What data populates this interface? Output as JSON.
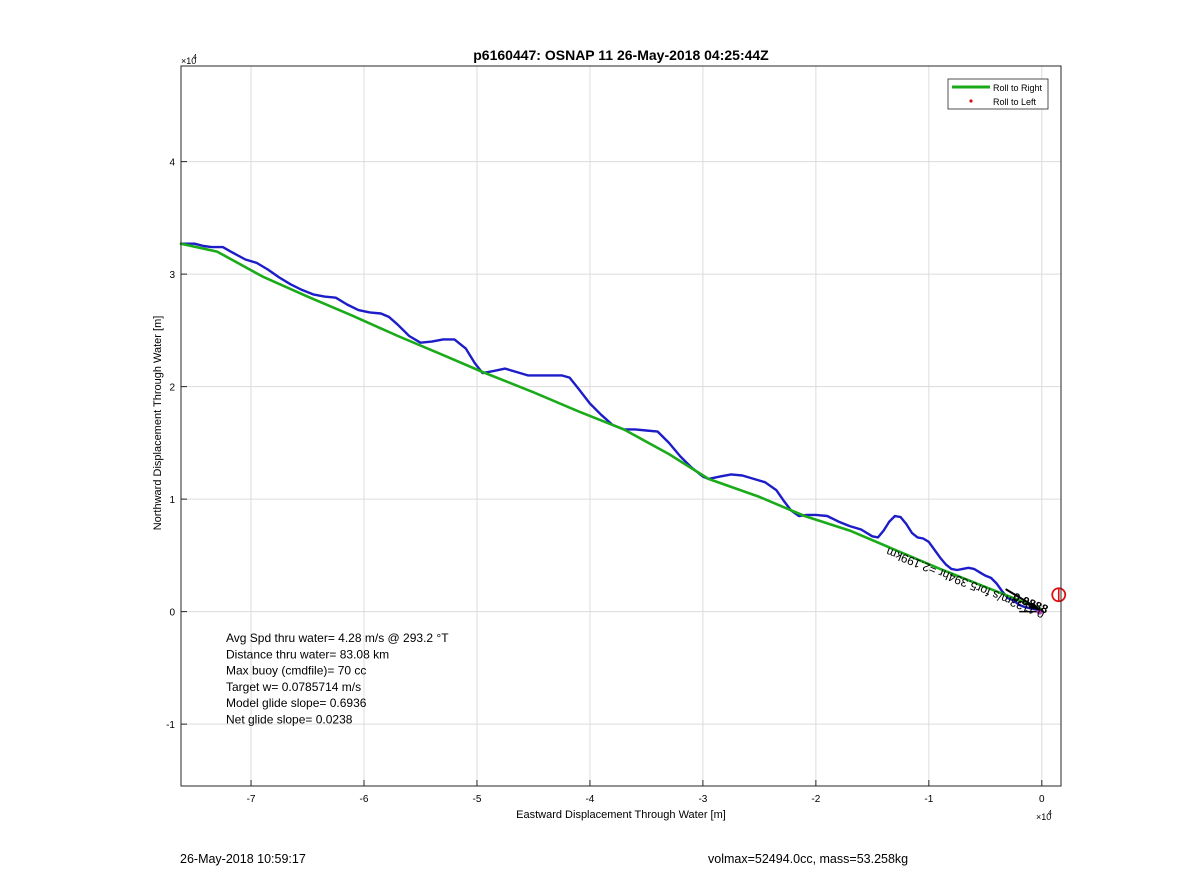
{
  "chart_data": {
    "type": "line",
    "title": "p6160447: OSNAP 11 26-May-2018 04:25:44Z",
    "xlabel": "Eastward Displacement Through Water [m]",
    "ylabel": "Northward Displacement Through Water [m]",
    "x_exponent_label": "×10",
    "x_exponent_power": "4",
    "y_exponent_label": "×10",
    "y_exponent_power": "4",
    "xlim": [
      -7.62,
      0.17
    ],
    "ylim": [
      -1.55,
      4.85
    ],
    "xticks": [
      -7,
      -6,
      -5,
      -4,
      -3,
      -2,
      -1,
      0
    ],
    "yticks": [
      -1,
      0,
      1,
      2,
      3,
      4
    ],
    "grid": true,
    "legend_position": "top-right",
    "legend": [
      {
        "label": "Roll to Right",
        "color": "#1aaa1a",
        "marker": "line"
      },
      {
        "label": "Roll to Left",
        "color": "#e01010",
        "marker": "dot"
      }
    ],
    "series": [
      {
        "name": "Roll to Right",
        "color": "#1aaa1a",
        "x": [
          -7.62,
          -7.3,
          -6.9,
          -6.5,
          -6.1,
          -5.7,
          -5.3,
          -4.95,
          -4.5,
          -4.1,
          -3.7,
          -3.3,
          -2.95,
          -2.5,
          -2.1,
          -1.7,
          -1.3,
          -0.9,
          -0.5,
          -0.2,
          0.0
        ],
        "y": [
          3.27,
          3.2,
          2.98,
          2.8,
          2.63,
          2.45,
          2.28,
          2.13,
          1.95,
          1.78,
          1.62,
          1.4,
          1.18,
          1.02,
          0.85,
          0.72,
          0.55,
          0.38,
          0.22,
          0.1,
          0.02
        ]
      },
      {
        "name": "",
        "color": "#1c1cc8",
        "x": [
          -7.62,
          -7.5,
          -7.42,
          -7.35,
          -7.25,
          -7.18,
          -7.05,
          -6.95,
          -6.85,
          -6.75,
          -6.65,
          -6.55,
          -6.45,
          -6.35,
          -6.25,
          -6.15,
          -6.05,
          -5.95,
          -5.85,
          -5.78,
          -5.7,
          -5.6,
          -5.5,
          -5.4,
          -5.3,
          -5.2,
          -5.1,
          -5.02,
          -4.95,
          -4.85,
          -4.75,
          -4.65,
          -4.55,
          -4.45,
          -4.35,
          -4.25,
          -4.18,
          -4.1,
          -4.0,
          -3.9,
          -3.8,
          -3.7,
          -3.6,
          -3.5,
          -3.4,
          -3.3,
          -3.2,
          -3.1,
          -3.0,
          -2.95,
          -2.85,
          -2.75,
          -2.65,
          -2.55,
          -2.45,
          -2.35,
          -2.28,
          -2.22,
          -2.15,
          -2.08,
          -2.0,
          -1.9,
          -1.8,
          -1.7,
          -1.6,
          -1.5,
          -1.45,
          -1.4,
          -1.35,
          -1.3,
          -1.25,
          -1.2,
          -1.15,
          -1.1,
          -1.05,
          -1.0,
          -0.95,
          -0.9,
          -0.85,
          -0.8,
          -0.75,
          -0.7,
          -0.65,
          -0.6,
          -0.55,
          -0.5,
          -0.45,
          -0.4,
          -0.35,
          -0.3,
          -0.25,
          -0.2,
          -0.15,
          -0.1,
          -0.05,
          0.0
        ],
        "y": [
          3.27,
          3.27,
          3.25,
          3.24,
          3.24,
          3.2,
          3.13,
          3.1,
          3.04,
          2.97,
          2.91,
          2.86,
          2.82,
          2.8,
          2.79,
          2.73,
          2.68,
          2.66,
          2.65,
          2.62,
          2.55,
          2.45,
          2.39,
          2.4,
          2.42,
          2.42,
          2.34,
          2.21,
          2.12,
          2.14,
          2.16,
          2.13,
          2.1,
          2.1,
          2.1,
          2.1,
          2.08,
          1.98,
          1.85,
          1.75,
          1.66,
          1.62,
          1.62,
          1.61,
          1.6,
          1.5,
          1.38,
          1.28,
          1.2,
          1.18,
          1.2,
          1.22,
          1.21,
          1.18,
          1.15,
          1.08,
          0.98,
          0.9,
          0.85,
          0.86,
          0.86,
          0.85,
          0.8,
          0.76,
          0.73,
          0.67,
          0.66,
          0.72,
          0.8,
          0.85,
          0.84,
          0.78,
          0.7,
          0.66,
          0.65,
          0.62,
          0.55,
          0.48,
          0.42,
          0.38,
          0.37,
          0.38,
          0.39,
          0.38,
          0.35,
          0.32,
          0.3,
          0.25,
          0.18,
          0.12,
          0.1,
          0.06,
          0.04,
          0.03,
          0.02,
          0.02
        ]
      }
    ],
    "annotations": [
      {
        "text": "Avg Spd thru water=  4.28 m/s @ 293.2 °T"
      },
      {
        "text": "Distance thru water= 83.08 km"
      },
      {
        "text": "Max buoy (cmdfile)= 70 cc"
      },
      {
        "text": "Target w= 0.0785714 m/s"
      },
      {
        "text": "Model glide slope= 0.6936"
      },
      {
        "text": "Net glide slope= 0.0238"
      }
    ],
    "rotated_label": {
      "text": "0.1133m/s for5.394hr =2.199km"
    },
    "overlap_label": {
      "text": "0.0888"
    }
  },
  "footer": {
    "left": "26-May-2018 10:59:17",
    "right": "volmax=52494.0cc, mass=53.258kg"
  },
  "colors": {
    "axes": "#262626",
    "grid": "#dcdcdc",
    "marker_circle": "#e01010",
    "arrow": "#000000",
    "end_marker": "#c040c0"
  }
}
